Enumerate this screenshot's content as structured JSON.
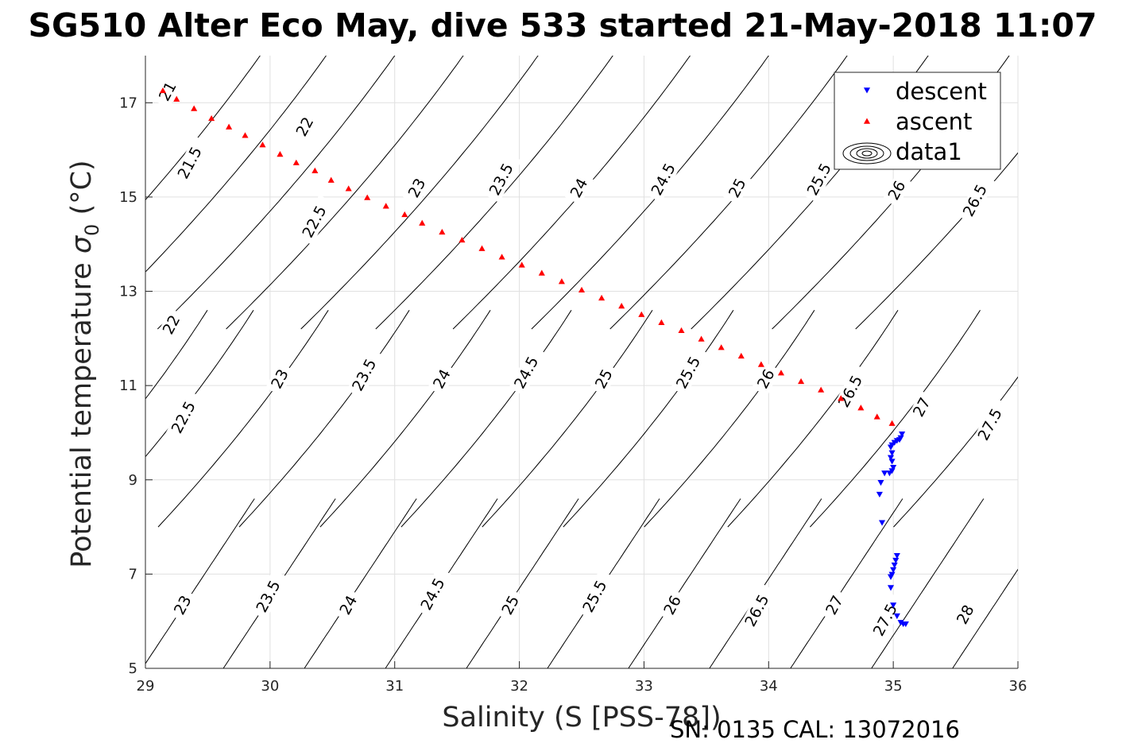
{
  "chart_data": {
    "type": "scatter",
    "title": "SG510 Alter Eco May, dive 533 started 21-May-2018 11:07",
    "xlabel": "Salinity (S [PSS-78])",
    "ylabel_main": "Potential temperature ",
    "ylabel_sigma": "σ",
    "ylabel_sub": "0",
    "ylabel_unit": " (°C)",
    "footer": "SN: 0135  CAL: 13072016",
    "xlim": [
      29,
      36
    ],
    "ylim": [
      5,
      18
    ],
    "xticks": [
      29,
      30,
      31,
      32,
      33,
      34,
      35,
      36
    ],
    "yticks": [
      5,
      7,
      9,
      11,
      13,
      15,
      17
    ],
    "grid": true,
    "legend_position": "top-right",
    "legend": [
      {
        "label": "descent",
        "marker": "triangle-down",
        "color": "#0000ff"
      },
      {
        "label": "ascent",
        "marker": "triangle-up",
        "color": "#ff0000"
      },
      {
        "label": "data1",
        "marker": "contour",
        "color": "#000000"
      }
    ],
    "series": [
      {
        "name": "descent",
        "color": "#0000ff",
        "marker": "triangle-down",
        "points": [
          [
            35.07,
            9.98
          ],
          [
            35.06,
            9.9
          ],
          [
            35.05,
            9.86
          ],
          [
            35.03,
            9.84
          ],
          [
            35.01,
            9.8
          ],
          [
            34.99,
            9.75
          ],
          [
            34.98,
            9.7
          ],
          [
            34.99,
            9.58
          ],
          [
            34.98,
            9.48
          ],
          [
            34.99,
            9.4
          ],
          [
            35.0,
            9.27
          ],
          [
            34.99,
            9.2
          ],
          [
            34.97,
            9.15
          ],
          [
            34.93,
            9.15
          ],
          [
            34.9,
            8.95
          ],
          [
            34.89,
            8.7
          ],
          [
            34.91,
            8.1
          ],
          [
            35.03,
            7.4
          ],
          [
            35.02,
            7.3
          ],
          [
            35.01,
            7.2
          ],
          [
            35.0,
            7.1
          ],
          [
            34.99,
            7.0
          ],
          [
            34.98,
            6.95
          ],
          [
            34.98,
            6.72
          ],
          [
            35.0,
            6.35
          ],
          [
            35.03,
            6.12
          ],
          [
            35.06,
            5.98
          ],
          [
            35.08,
            5.95
          ],
          [
            35.1,
            5.95
          ]
        ]
      },
      {
        "name": "ascent",
        "color": "#ff0000",
        "marker": "triangle-up",
        "points": [
          [
            29.14,
            17.25
          ],
          [
            29.25,
            17.07
          ],
          [
            29.39,
            16.87
          ],
          [
            29.53,
            16.66
          ],
          [
            29.67,
            16.48
          ],
          [
            29.8,
            16.3
          ],
          [
            29.94,
            16.1
          ],
          [
            30.08,
            15.9
          ],
          [
            30.21,
            15.72
          ],
          [
            30.36,
            15.55
          ],
          [
            30.49,
            15.35
          ],
          [
            30.63,
            15.17
          ],
          [
            30.78,
            14.98
          ],
          [
            30.93,
            14.8
          ],
          [
            31.08,
            14.62
          ],
          [
            31.22,
            14.44
          ],
          [
            31.38,
            14.25
          ],
          [
            31.54,
            14.08
          ],
          [
            31.7,
            13.9
          ],
          [
            31.86,
            13.72
          ],
          [
            32.02,
            13.55
          ],
          [
            32.18,
            13.38
          ],
          [
            32.34,
            13.2
          ],
          [
            32.5,
            13.02
          ],
          [
            32.66,
            12.85
          ],
          [
            32.82,
            12.68
          ],
          [
            32.98,
            12.5
          ],
          [
            33.14,
            12.33
          ],
          [
            33.3,
            12.16
          ],
          [
            33.46,
            11.98
          ],
          [
            33.62,
            11.8
          ],
          [
            33.78,
            11.62
          ],
          [
            33.94,
            11.44
          ],
          [
            34.1,
            11.26
          ],
          [
            34.26,
            11.08
          ],
          [
            34.42,
            10.9
          ],
          [
            34.58,
            10.72
          ],
          [
            34.74,
            10.52
          ],
          [
            34.87,
            10.33
          ],
          [
            34.99,
            10.19
          ]
        ]
      }
    ],
    "contour_sets": [
      {
        "x_offset": 0,
        "levels": [
          {
            "value": "21",
            "label_at": [
              29.15,
              17.05
            ]
          },
          {
            "value": "21.5",
            "label_at": [
              29.3,
              15.4
            ]
          },
          {
            "value": "22",
            "label_at": [
              30.25,
              16.3
            ]
          },
          {
            "value": "22.5",
            "label_at": [
              30.3,
              14.15
            ]
          },
          {
            "value": "23",
            "label_at": [
              31.15,
              15.0
            ]
          },
          {
            "value": "23.5",
            "label_at": [
              31.8,
              15.05
            ]
          },
          {
            "value": "24",
            "label_at": [
              32.45,
              15.0
            ]
          },
          {
            "value": "24.5",
            "label_at": [
              33.1,
              15.05
            ]
          },
          {
            "value": "25",
            "label_at": [
              33.72,
              15.0
            ]
          },
          {
            "value": "25.5",
            "label_at": [
              34.35,
              15.05
            ]
          },
          {
            "value": "26",
            "label_at": [
              35.0,
              14.95
            ]
          },
          {
            "value": "26.5",
            "label_at": [
              35.6,
              14.6
            ]
          }
        ],
        "y_range": [
          12.5,
          18
        ],
        "lines_x_at_15": [
          29.02,
          29.55,
          30.1,
          30.65,
          31.25,
          31.85,
          32.47,
          33.1,
          33.73,
          34.38,
          35.03,
          35.7
        ]
      },
      {
        "levels": [
          {
            "value": "22",
            "label_at": [
              29.18,
              12.1
            ]
          },
          {
            "value": "22.5",
            "label_at": [
              29.25,
              10.0
            ]
          },
          {
            "value": "23",
            "label_at": [
              30.05,
              10.95
            ]
          },
          {
            "value": "23.5",
            "label_at": [
              30.7,
              10.9
            ]
          },
          {
            "value": "24",
            "label_at": [
              31.35,
              10.95
            ]
          },
          {
            "value": "24.5",
            "label_at": [
              32.0,
              10.95
            ]
          },
          {
            "value": "25",
            "label_at": [
              32.65,
              10.95
            ]
          },
          {
            "value": "25.5",
            "label_at": [
              33.3,
              10.95
            ]
          },
          {
            "value": "26",
            "label_at": [
              33.95,
              10.95
            ]
          },
          {
            "value": "26.5",
            "label_at": [
              34.6,
              10.55
            ]
          },
          {
            "value": "27",
            "label_at": [
              35.2,
              10.35
            ]
          },
          {
            "value": "27.5",
            "label_at": [
              35.72,
              9.85
            ]
          }
        ],
        "lines_x_at_11": [
          29.08,
          29.45,
          30.05,
          30.7,
          31.35,
          32.0,
          32.65,
          33.3,
          33.95,
          34.62,
          35.28,
          35.95
        ]
      },
      {
        "levels": [
          {
            "value": "23",
            "label_at": [
              29.27,
              6.15
            ]
          },
          {
            "value": "23.5",
            "label_at": [
              29.93,
              6.2
            ]
          },
          {
            "value": "24",
            "label_at": [
              30.6,
              6.15
            ]
          },
          {
            "value": "24.5",
            "label_at": [
              31.25,
              6.25
            ]
          },
          {
            "value": "25",
            "label_at": [
              31.9,
              6.15
            ]
          },
          {
            "value": "25.5",
            "label_at": [
              32.55,
              6.2
            ]
          },
          {
            "value": "26",
            "label_at": [
              33.2,
              6.15
            ]
          },
          {
            "value": "26.5",
            "label_at": [
              33.85,
              5.9
            ]
          },
          {
            "value": "27",
            "label_at": [
              34.5,
              6.15
            ]
          },
          {
            "value": "27.5",
            "label_at": [
              34.88,
              5.7
            ]
          },
          {
            "value": "28",
            "label_at": [
              35.55,
              5.95
            ]
          }
        ]
      }
    ]
  }
}
